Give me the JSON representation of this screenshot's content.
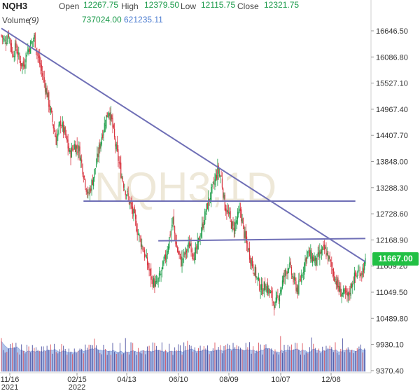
{
  "header": {
    "symbol": "NQH3",
    "open_label": "Open",
    "open": "12267.75",
    "high_label": "High",
    "high": "12379.50",
    "low_label": "Low",
    "low": "12115.75",
    "close_label": "Close",
    "close": "12321.75",
    "volume_label": "Volume",
    "volume_period": "(9)",
    "volume_value": "737024.00",
    "volume_ma_value": "621235.11"
  },
  "watermark": "NQH3,1D",
  "last_price": "11667.00",
  "colors": {
    "up": "#1e9e4a",
    "down": "#d8343f",
    "trendline": "#6f6fb6",
    "last_price_bg": "#21c044",
    "volume_fill": "#a9bde8",
    "volume_bar": "#2a2f8f"
  },
  "chart_data": {
    "type": "candlestick",
    "y_ticks": [
      "16646.50",
      "16086.80",
      "15527.10",
      "14967.40",
      "14407.70",
      "13848.00",
      "13288.30",
      "12728.60",
      "12168.90",
      "11609.20",
      "11049.50",
      "10489.80",
      "9930.10",
      "9370.40"
    ],
    "x_ticks": [
      {
        "label": "11/16",
        "sub": "2021"
      },
      {
        "label": "02/15",
        "sub": "2022"
      },
      {
        "label": "04/13",
        "sub": ""
      },
      {
        "label": "06/10",
        "sub": ""
      },
      {
        "label": "08/09",
        "sub": ""
      },
      {
        "label": "10/07",
        "sub": ""
      },
      {
        "label": "12/08",
        "sub": ""
      }
    ],
    "ylim": [
      9200,
      16900
    ],
    "close_path": [
      [
        0,
        16550
      ],
      [
        4,
        16400
      ],
      [
        8,
        16600
      ],
      [
        12,
        16150
      ],
      [
        16,
        16300
      ],
      [
        20,
        16000
      ],
      [
        24,
        15900
      ],
      [
        28,
        16200
      ],
      [
        32,
        16350
      ],
      [
        36,
        16500
      ],
      [
        40,
        16100
      ],
      [
        45,
        15700
      ],
      [
        50,
        15300
      ],
      [
        55,
        14800
      ],
      [
        60,
        14300
      ],
      [
        65,
        14700
      ],
      [
        70,
        14400
      ],
      [
        75,
        14000
      ],
      [
        80,
        14200
      ],
      [
        85,
        14100
      ],
      [
        90,
        13600
      ],
      [
        95,
        13100
      ],
      [
        100,
        13450
      ],
      [
        105,
        13900
      ],
      [
        110,
        14400
      ],
      [
        115,
        14800
      ],
      [
        118,
        14950
      ],
      [
        121,
        14700
      ],
      [
        125,
        14200
      ],
      [
        130,
        13700
      ],
      [
        135,
        13300
      ],
      [
        140,
        13000
      ],
      [
        145,
        12700
      ],
      [
        150,
        12300
      ],
      [
        155,
        12000
      ],
      [
        160,
        11650
      ],
      [
        165,
        11300
      ],
      [
        170,
        11200
      ],
      [
        175,
        11450
      ],
      [
        180,
        11800
      ],
      [
        185,
        12300
      ],
      [
        188,
        12600
      ],
      [
        192,
        12000
      ],
      [
        197,
        11700
      ],
      [
        202,
        11900
      ],
      [
        207,
        12100
      ],
      [
        212,
        11800
      ],
      [
        217,
        12200
      ],
      [
        222,
        12600
      ],
      [
        227,
        13000
      ],
      [
        232,
        13300
      ],
      [
        237,
        13650
      ],
      [
        241,
        13500
      ],
      [
        245,
        12900
      ],
      [
        249,
        12700
      ],
      [
        254,
        12400
      ],
      [
        258,
        12600
      ],
      [
        262,
        12800
      ],
      [
        266,
        12300
      ],
      [
        270,
        12000
      ],
      [
        275,
        11650
      ],
      [
        280,
        11350
      ],
      [
        285,
        11100
      ],
      [
        290,
        11200
      ],
      [
        295,
        11000
      ],
      [
        300,
        10750
      ],
      [
        305,
        11050
      ],
      [
        310,
        11400
      ],
      [
        315,
        11650
      ],
      [
        320,
        11300
      ],
      [
        325,
        11100
      ],
      [
        330,
        11500
      ],
      [
        335,
        11900
      ],
      [
        340,
        11800
      ],
      [
        345,
        11700
      ],
      [
        350,
        11900
      ],
      [
        355,
        11950
      ],
      [
        360,
        11700
      ],
      [
        365,
        11400
      ],
      [
        370,
        11100
      ],
      [
        375,
        11000
      ],
      [
        380,
        10950
      ],
      [
        385,
        11300
      ],
      [
        390,
        11450
      ],
      [
        395,
        11500
      ],
      [
        399,
        11667
      ]
    ],
    "trendlines": [
      {
        "name": "",
        "from": [
          0,
          16700
        ],
        "to": [
          399,
          11700
        ]
      },
      {
        "name": "",
        "from": [
          90,
          13000
        ],
        "to": [
          388,
          13000
        ]
      },
      {
        "name": "",
        "from": [
          172,
          12150
        ],
        "to": [
          399,
          12200
        ]
      }
    ]
  }
}
